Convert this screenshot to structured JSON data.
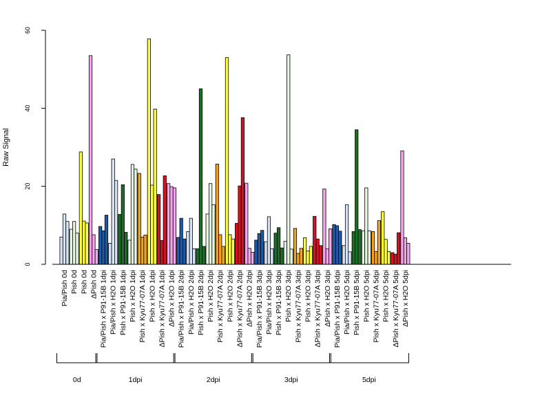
{
  "chart_data": {
    "type": "bar",
    "title": "",
    "xlabel": "",
    "ylabel": "Raw Signal",
    "ylim": [
      0,
      60
    ],
    "yticks": [
      0,
      20,
      40,
      60
    ],
    "grid": false,
    "legend": "none",
    "categories": [
      "Pia/Pish 0d",
      "Pish 0d",
      "Pish 0d",
      "ΔPish 0d",
      "Pia/Pish x P91-15B 1dpi",
      "Pia/Pish x H2O 1dpi",
      "Pish x P91-15B 1dpi",
      "Pish x H2O 1dpi",
      "Pish x Kyu77-07A 1dpi",
      "Pish x H2O 1dpi",
      "ΔPish x Kyu77-07A 1dpi",
      "ΔPish x H2O 1dpi",
      "Pia/Pish x P91-15B 2dpi",
      "Pia/Pish x H2O 2dpi",
      "Pish x P91-15B 2dpi",
      "Pish x H2O 2dpi",
      "Pish x Kyu77-07A 2dpi",
      "Pish x H2O 2dpi",
      "ΔPish x Kyu77-07A 2dpi",
      "ΔPish x H2O 2dpi",
      "Pia/Pish x P91-15B 3dpi",
      "Pia/Pish x H2O 3dpi",
      "Pish x P91-15B 3dpi",
      "Pish x H2O 3dpi",
      "Pish x Kyu77-07A 3dpi",
      "Pish x H2O 3dpi",
      "ΔPish x Kyu77-07A 3dpi",
      "ΔPish x H2O 3dpi",
      "Pia/Pish x P91-15B 5dpi",
      "Pia/Pish x H2O 5dpi",
      "Pish x P91-15B 5dpi",
      "Pish x H2O 5dpi",
      "Pish x Kyu77-07A 5dpi",
      "Pish x H2O 5dpi",
      "ΔPish x Kyu77-07A 5dpi",
      "ΔPish x H2O 5dpi"
    ],
    "category_colors": [
      "#d6e4f5",
      "#e6f5e1",
      "#ffff33",
      "#f4a6ec",
      "#1f5aa6",
      "#d6e4f5",
      "#1e6e2a",
      "#e6f5e1",
      "#f5a418",
      "#ffff33",
      "#d41424",
      "#f4a6ec",
      "#1f5aa6",
      "#d6e4f5",
      "#1e6e2a",
      "#e6f5e1",
      "#f5a418",
      "#ffff33",
      "#d41424",
      "#f4a6ec",
      "#1f5aa6",
      "#d6e4f5",
      "#1e6e2a",
      "#e6f5e1",
      "#f5a418",
      "#ffff33",
      "#d41424",
      "#f4a6ec",
      "#1f5aa6",
      "#d6e4f5",
      "#1e6e2a",
      "#e6f5e1",
      "#f5a418",
      "#ffff33",
      "#d41424",
      "#f4a6ec"
    ],
    "values": [
      [
        7.0,
        12.9,
        11.0
      ],
      [
        9.0,
        11.0,
        8.0
      ],
      [
        28.8,
        11.1,
        10.6
      ],
      [
        53.5,
        7.6,
        3.8
      ],
      [
        9.7,
        8.6,
        12.6
      ],
      [
        5.4,
        27.0,
        21.5
      ],
      [
        12.8,
        20.4,
        8.2
      ],
      [
        6.2,
        25.6,
        24.4
      ],
      [
        23.3,
        7.0,
        7.5
      ],
      [
        57.8,
        20.3,
        39.8
      ],
      [
        17.9,
        6.1,
        22.7
      ],
      [
        20.7,
        19.9,
        19.6
      ],
      [
        6.9,
        11.8,
        6.5
      ],
      [
        8.4,
        11.8,
        4.0
      ],
      [
        4.0,
        45.0,
        4.6
      ],
      [
        12.9,
        20.7,
        15.3
      ],
      [
        25.7,
        7.6,
        4.6
      ],
      [
        53.0,
        7.6,
        6.5
      ],
      [
        10.5,
        20.1,
        37.6
      ],
      [
        20.8,
        4.1,
        3.1
      ],
      [
        6.2,
        7.9,
        8.7
      ],
      [
        5.8,
        12.2,
        4.0
      ],
      [
        8.0,
        9.4,
        4.2
      ],
      [
        5.9,
        53.7,
        3.9
      ],
      [
        9.2,
        2.8,
        4.1
      ],
      [
        6.8,
        3.4,
        4.6
      ],
      [
        12.3,
        6.5,
        4.8
      ],
      [
        19.3,
        4.0,
        9.1
      ],
      [
        10.2,
        9.9,
        8.5
      ],
      [
        4.8,
        15.3,
        3.2
      ],
      [
        8.4,
        34.5,
        8.9
      ],
      [
        8.6,
        19.6,
        8.6
      ],
      [
        8.4,
        3.3,
        11.2
      ],
      [
        13.5,
        6.4,
        3.3
      ],
      [
        3.0,
        2.6,
        8.1
      ],
      [
        29.1,
        6.8,
        5.4
      ]
    ],
    "groups": [
      {
        "label": "0d",
        "start": 0,
        "end": 3
      },
      {
        "label": "1dpi",
        "start": 4,
        "end": 11
      },
      {
        "label": "2dpi",
        "start": 12,
        "end": 19
      },
      {
        "label": "3dpi",
        "start": 20,
        "end": 27
      },
      {
        "label": "5dpi",
        "start": 28,
        "end": 35
      }
    ]
  }
}
